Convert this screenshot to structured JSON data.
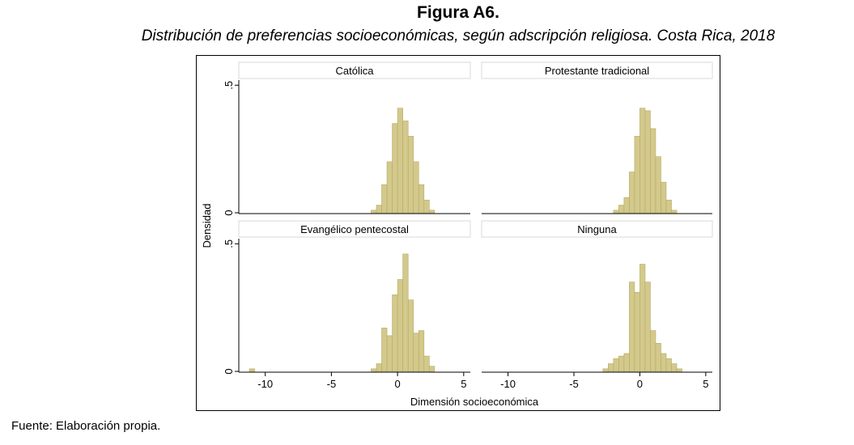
{
  "figure": {
    "title": "Figura A6.",
    "subtitle": "Distribución de preferencias socioeconómicas, según adscripción religiosa. Costa Rica, 2018",
    "source": "Fuente: Elaboración propia."
  },
  "chart_data": {
    "type": "bar",
    "subtype": "histogram-facets",
    "xlabel": "Dimensión socioeconómica",
    "ylabel": "Densidad",
    "xlim": [
      -12,
      5.5
    ],
    "ylim": [
      0,
      0.52
    ],
    "x_ticks": [
      -10,
      -5,
      0,
      5
    ],
    "x_tick_labels": [
      "-10",
      "-5",
      "0",
      "5"
    ],
    "y_ticks": [
      0,
      0.5
    ],
    "y_tick_labels": [
      "0",
      ".5"
    ],
    "bin_width": 0.4,
    "bar_color": "#d3c98c",
    "bar_edge_color": "#b5aa62",
    "panel_header_color": "#ffffff",
    "grid": false,
    "series": [
      {
        "name": "Católica",
        "bins": [
          {
            "x": -2.0,
            "y": 0.01
          },
          {
            "x": -1.6,
            "y": 0.03
          },
          {
            "x": -1.2,
            "y": 0.11
          },
          {
            "x": -0.8,
            "y": 0.2
          },
          {
            "x": -0.4,
            "y": 0.35
          },
          {
            "x": 0.0,
            "y": 0.41
          },
          {
            "x": 0.4,
            "y": 0.36
          },
          {
            "x": 0.8,
            "y": 0.3
          },
          {
            "x": 1.2,
            "y": 0.2
          },
          {
            "x": 1.6,
            "y": 0.11
          },
          {
            "x": 2.0,
            "y": 0.05
          },
          {
            "x": 2.4,
            "y": 0.01
          }
        ]
      },
      {
        "name": "Protestante tradicional",
        "bins": [
          {
            "x": -2.0,
            "y": 0.01
          },
          {
            "x": -1.6,
            "y": 0.03
          },
          {
            "x": -1.2,
            "y": 0.06
          },
          {
            "x": -0.8,
            "y": 0.16
          },
          {
            "x": -0.4,
            "y": 0.3
          },
          {
            "x": 0.0,
            "y": 0.41
          },
          {
            "x": 0.4,
            "y": 0.4
          },
          {
            "x": 0.8,
            "y": 0.33
          },
          {
            "x": 1.2,
            "y": 0.22
          },
          {
            "x": 1.6,
            "y": 0.12
          },
          {
            "x": 2.0,
            "y": 0.05
          },
          {
            "x": 2.4,
            "y": 0.01
          }
        ]
      },
      {
        "name": "Evangélico pentecostal",
        "bins": [
          {
            "x": -11.2,
            "y": 0.01
          },
          {
            "x": -2.0,
            "y": 0.01
          },
          {
            "x": -1.6,
            "y": 0.03
          },
          {
            "x": -1.2,
            "y": 0.17
          },
          {
            "x": -0.8,
            "y": 0.14
          },
          {
            "x": -0.4,
            "y": 0.3
          },
          {
            "x": 0.0,
            "y": 0.36
          },
          {
            "x": 0.4,
            "y": 0.46
          },
          {
            "x": 0.8,
            "y": 0.28
          },
          {
            "x": 1.2,
            "y": 0.15
          },
          {
            "x": 1.6,
            "y": 0.16
          },
          {
            "x": 2.0,
            "y": 0.06
          },
          {
            "x": 2.4,
            "y": 0.02
          }
        ]
      },
      {
        "name": "Ninguna",
        "bins": [
          {
            "x": -2.8,
            "y": 0.01
          },
          {
            "x": -2.4,
            "y": 0.03
          },
          {
            "x": -2.0,
            "y": 0.05
          },
          {
            "x": -1.6,
            "y": 0.06
          },
          {
            "x": -1.2,
            "y": 0.07
          },
          {
            "x": -0.8,
            "y": 0.35
          },
          {
            "x": -0.4,
            "y": 0.31
          },
          {
            "x": 0.0,
            "y": 0.42
          },
          {
            "x": 0.4,
            "y": 0.35
          },
          {
            "x": 0.8,
            "y": 0.16
          },
          {
            "x": 1.2,
            "y": 0.11
          },
          {
            "x": 1.6,
            "y": 0.07
          },
          {
            "x": 2.0,
            "y": 0.05
          },
          {
            "x": 2.4,
            "y": 0.03
          },
          {
            "x": 2.8,
            "y": 0.01
          }
        ]
      }
    ]
  }
}
